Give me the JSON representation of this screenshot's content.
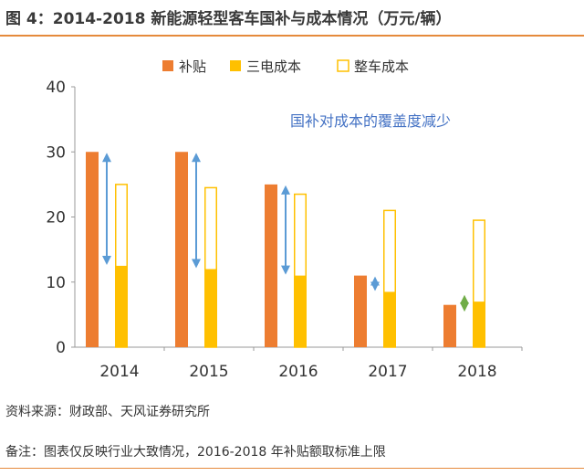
{
  "title": "图 4：2014-2018 新能源轻型客车国补与成本情况（万元/辆）",
  "source": "资料来源：财政部、天风证券研究所",
  "note": "备注：图表仅反映行业大致情况，2016-2018 年补贴额取标准上限",
  "annotation": "国补对成本的覆盖度减少",
  "colors": {
    "subsidy": "#ed7d31",
    "battery": "#ffc000",
    "vehicle_fill": "#ffffff",
    "vehicle_border": "#ffc000",
    "arrow_blue": "#5b9bd5",
    "arrow_green": "#70ad47",
    "annotation_text": "#4472c4",
    "rule": "#e58a3c"
  },
  "chart_data": {
    "type": "bar",
    "categories": [
      "2014",
      "2015",
      "2016",
      "2017",
      "2018"
    ],
    "series": [
      {
        "name": "补贴",
        "values": [
          30,
          30,
          25,
          11,
          6.5
        ]
      },
      {
        "name": "三电成本",
        "values": [
          12.5,
          12,
          11,
          8.5,
          7
        ]
      },
      {
        "name": "整车成本",
        "values": [
          25,
          24.5,
          23.5,
          21,
          19.5
        ]
      }
    ],
    "ylim": [
      0,
      40
    ],
    "yticks": [
      0,
      10,
      20,
      30,
      40
    ],
    "legend_position": "top-center",
    "grid": false
  }
}
